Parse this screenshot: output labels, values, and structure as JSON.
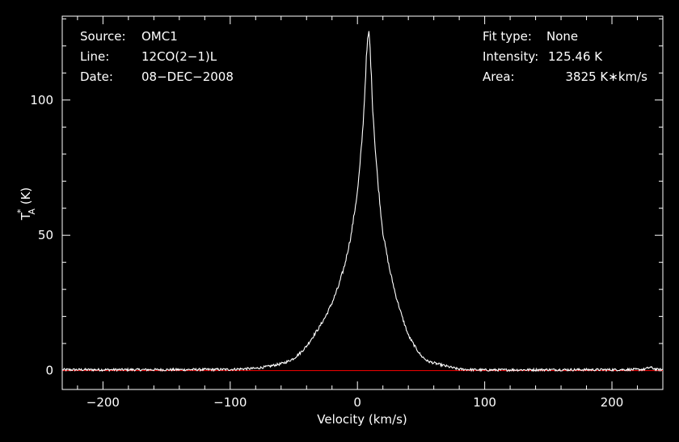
{
  "chart_data": {
    "type": "line",
    "xlabel": "Velocity (km/s)",
    "ylabel_main": "T",
    "ylabel_sup": "*",
    "ylabel_sub": "A",
    "ylabel_unit": " (K)",
    "xlim": [
      -232,
      240
    ],
    "ylim": [
      -7,
      131
    ],
    "x_ticks": [
      -200,
      -100,
      0,
      100,
      200
    ],
    "x_tick_labels": [
      "−200",
      "−100",
      "0",
      "100",
      "200"
    ],
    "y_ticks": [
      0,
      50,
      100
    ],
    "y_tick_labels": [
      "0",
      "50",
      "100"
    ],
    "x_minor_step": 20,
    "y_minor_step": 10,
    "grid": false,
    "series": [
      {
        "color": "#ffffff",
        "x": [
          -232,
          -200,
          -150,
          -100,
          -80,
          -70,
          -60,
          -55,
          -50,
          -45,
          -40,
          -35,
          -30,
          -25,
          -20,
          -15,
          -10,
          -5,
          0,
          2,
          4,
          5,
          6,
          7,
          8,
          9,
          10,
          11,
          12,
          14,
          16,
          18,
          20,
          25,
          30,
          35,
          40,
          45,
          50,
          55,
          60,
          65,
          70,
          75,
          80,
          90,
          100,
          150,
          200,
          225,
          230,
          235,
          240
        ],
        "y": [
          0.3,
          0.3,
          0.3,
          0.4,
          0.8,
          1.5,
          2.5,
          3.3,
          4.5,
          6.5,
          9.0,
          12.5,
          16.0,
          20.0,
          25.0,
          31.0,
          39.0,
          50.0,
          66.0,
          76.0,
          88.0,
          96.0,
          105.0,
          115.0,
          122.0,
          124.0,
          119.0,
          108.0,
          97.0,
          82.0,
          70.0,
          60.0,
          51.0,
          38.0,
          28.0,
          20.0,
          13.0,
          9.0,
          5.5,
          3.5,
          2.8,
          2.2,
          1.6,
          1.0,
          0.5,
          0.3,
          0.2,
          0.3,
          0.3,
          0.4,
          1.2,
          0.4,
          0.3
        ],
        "peak": {
          "x": 9,
          "y": 125.46
        }
      },
      {
        "color": "#ff0000",
        "x": [
          -232,
          240
        ],
        "y": [
          0,
          0
        ]
      }
    ],
    "annotations": {
      "left": [
        {
          "label": "Source:",
          "value": "OMC1"
        },
        {
          "label": "Line:",
          "value": "12CO(2−1)L"
        },
        {
          "label": "Date:",
          "value": "08−DEC−2008"
        }
      ],
      "right": [
        {
          "label": "Fit type:",
          "value": "None"
        },
        {
          "label": "Intensity:",
          "value": "125.46 K"
        },
        {
          "label": "Area:",
          "value": "3825 K∗km/s"
        }
      ]
    }
  }
}
